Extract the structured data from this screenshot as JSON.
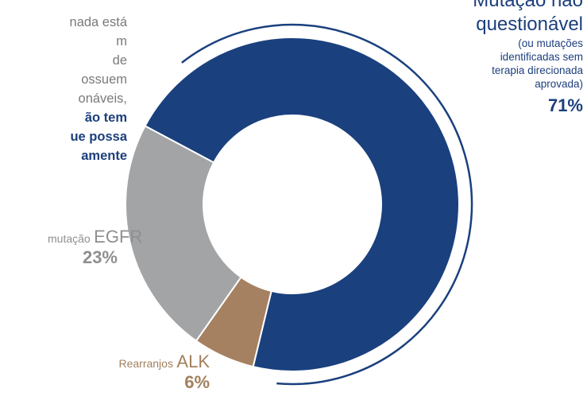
{
  "intro": {
    "lines": [
      "nada está",
      "m",
      "de",
      "ossuem",
      "onáveis,"
    ],
    "highlight_lines": [
      "ão tem",
      "ue possa",
      "amente"
    ]
  },
  "chart_data": {
    "type": "donut",
    "categories": [
      "Mutação não questionável",
      "Rearranjos ALK",
      "mutação EGFR"
    ],
    "values": [
      71,
      6,
      23
    ],
    "unit": "%",
    "colors": [
      "#1a407e",
      "#a58161",
      "#a3a4a6"
    ],
    "labels": {
      "mut": {
        "title_lines": [
          "Mutação não",
          "questionável"
        ],
        "note_lines": [
          "(ou mutações",
          "identificadas sem",
          "terapia direcionada",
          "aprovada)"
        ],
        "pct": "71%"
      },
      "alk": {
        "prefix": "Rearranjos",
        "name": "ALK",
        "pct": "6%"
      },
      "egfr": {
        "prefix": "mutação",
        "name": "EGFR",
        "pct": "23%"
      }
    }
  }
}
